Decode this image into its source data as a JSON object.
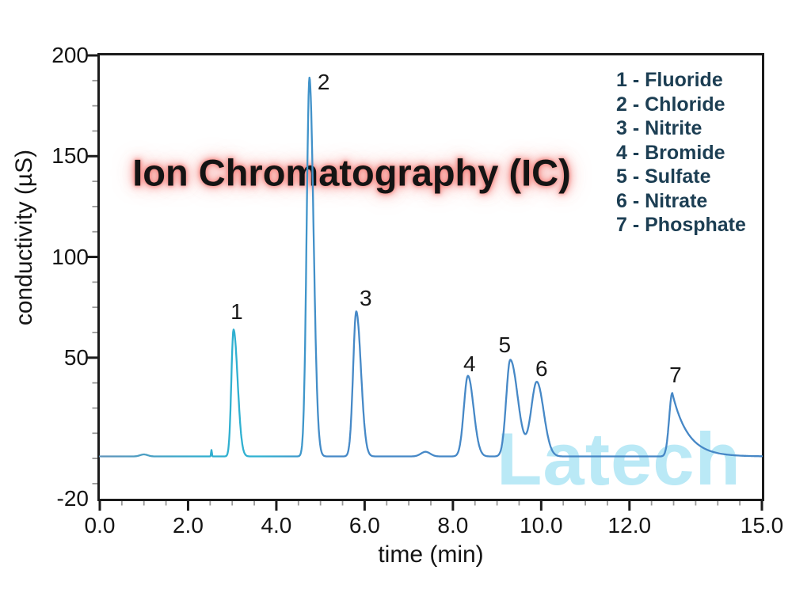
{
  "figure": {
    "title": "Ion Chromatography (IC)",
    "watermark": "Latech",
    "colors": {
      "background": "#ffffff",
      "axis_frame": "#1b1b1b",
      "tick_minor": "#999999",
      "tick_major": "#1b1b1b",
      "text": "#141414",
      "legend_text": "#1c3e53",
      "title_text": "#141414",
      "title_glow": "#f47d78",
      "watermark": "#bae9f6",
      "trace_gradient": [
        "#5e93ba",
        "#31aecf",
        "#2fb2d2",
        "#4689c7",
        "#4687c6"
      ]
    }
  },
  "chart_data": {
    "type": "line",
    "title": "Ion Chromatography (IC)",
    "xlabel": "time (min)",
    "ylabel": "conductivity (µS)",
    "xlim": [
      0.0,
      15.0
    ],
    "ylim": [
      -20,
      200
    ],
    "x_major_ticks": [
      0,
      2,
      4,
      6,
      8,
      10,
      12,
      15
    ],
    "x_tick_labels": [
      "0.0",
      "2.0",
      "4.0",
      "6.0",
      "8.0",
      "10.0",
      "12.0",
      "15.0"
    ],
    "x_minor_step": 0.5,
    "y_major_ticks": [
      200,
      150,
      100,
      50
    ],
    "y_tick_labels": [
      "200",
      "150",
      "100",
      "50"
    ],
    "y_bottom_label": "-20",
    "y_minor_step": 12.5,
    "grid": false,
    "legend_position": "upper right",
    "legend": [
      "1 - Fluoride",
      "2 - Chloride",
      "3 - Nitrite",
      "4 - Bromide",
      "5 - Sulfate",
      "6 - Nitrate",
      "7 - Phosphate"
    ],
    "baseline_uS": 1,
    "peaks": [
      {
        "num": "1",
        "analyte": "Fluoride",
        "rt_min": 3.03,
        "height_uS": 63,
        "sigma_left": 0.07,
        "sigma_right": 0.13,
        "label_offset": [
          4,
          -22
        ]
      },
      {
        "num": "2",
        "analyte": "Chloride",
        "rt_min": 4.75,
        "height_uS": 188,
        "sigma_left": 0.09,
        "sigma_right": 0.13,
        "label_offset": [
          18,
          6
        ]
      },
      {
        "num": "3",
        "analyte": "Nitrite",
        "rt_min": 5.81,
        "height_uS": 72,
        "sigma_left": 0.1,
        "sigma_right": 0.15,
        "label_offset": [
          12,
          -16
        ]
      },
      {
        "num": "4",
        "analyte": "Bromide",
        "rt_min": 8.34,
        "height_uS": 40,
        "sigma_left": 0.13,
        "sigma_right": 0.18,
        "label_offset": [
          2,
          -15
        ]
      },
      {
        "num": "5",
        "analyte": "Sulfate",
        "rt_min": 9.3,
        "height_uS": 48,
        "sigma_left": 0.13,
        "sigma_right": 0.24,
        "label_offset": [
          -7,
          -18
        ]
      },
      {
        "num": "6",
        "analyte": "Nitrate",
        "rt_min": 9.9,
        "height_uS": 37,
        "sigma_left": 0.18,
        "sigma_right": 0.22,
        "label_offset": [
          6,
          -16
        ]
      },
      {
        "num": "7",
        "analyte": "Phosphate",
        "rt_min": 12.97,
        "height_uS": 31.5,
        "sigma_left": 0.1,
        "tail_tau": 0.35,
        "label_offset": [
          4,
          -22
        ]
      }
    ],
    "artifacts": [
      {
        "name": "baseline-ripple",
        "t_min": 1.0,
        "height_uS": 1.0,
        "sigma": 0.12
      },
      {
        "name": "injection-spike",
        "t_min": 2.53,
        "height_uS": 3.2,
        "sigma": 0.013
      },
      {
        "name": "baseline-bump",
        "t_min": 7.38,
        "height_uS": 2.3,
        "sigma": 0.15
      }
    ]
  }
}
